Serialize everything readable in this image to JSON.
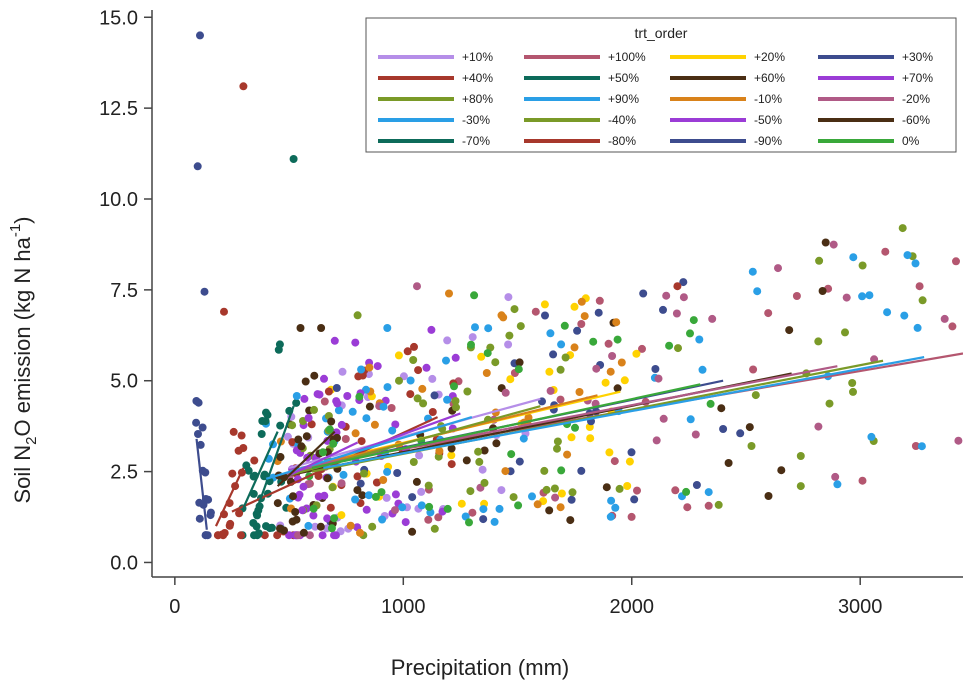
{
  "chart_data": {
    "type": "scatter",
    "title": "",
    "xlabel": "Precipitation (mm)",
    "ylabel_parts": [
      "Soil N",
      "2",
      "O emission (kg N ha",
      "-1",
      ")"
    ],
    "xlim": [
      -100,
      3450
    ],
    "ylim": [
      -0.4,
      15.2
    ],
    "xticks": [
      0,
      1000,
      2000,
      3000
    ],
    "xtick_labels": [
      "0",
      "1000",
      "2000",
      "3000"
    ],
    "yticks": [
      0.0,
      2.5,
      5.0,
      7.5,
      10.0,
      12.5,
      15.0
    ],
    "ytick_labels": [
      "0.0",
      "2.5",
      "5.0",
      "7.5",
      "10.0",
      "12.5",
      "15.0"
    ],
    "grid": false,
    "legend": {
      "title": "trt_order",
      "placement": "top-right",
      "columns": 4
    },
    "series": [
      {
        "name": "+10%",
        "color": "#b58ee8",
        "fit": [
          [
            500,
            2.6
          ],
          [
            1600,
            4.5
          ]
        ]
      },
      {
        "name": "+100%",
        "color": "#b4566f",
        "fit": [
          [
            700,
            2.8
          ],
          [
            3450,
            5.75
          ]
        ]
      },
      {
        "name": "+20%",
        "color": "#ffd200",
        "fit": [
          [
            600,
            2.7
          ],
          [
            1950,
            4.7
          ]
        ]
      },
      {
        "name": "+30%",
        "color": "#3d4c8e",
        "fit": [
          [
            650,
            2.7
          ],
          [
            2400,
            5.0
          ]
        ]
      },
      {
        "name": "+40%",
        "color": "#a7382c",
        "fit": [
          [
            250,
            1.4
          ],
          [
            1150,
            4.0
          ]
        ]
      },
      {
        "name": "+50%",
        "color": "#0d6b5a",
        "fit": [
          [
            350,
            1.3
          ],
          [
            520,
            4.3
          ]
        ]
      },
      {
        "name": "+60%",
        "color": "#4a2e14",
        "fit": [
          [
            500,
            2.4
          ],
          [
            2700,
            5.2
          ]
        ]
      },
      {
        "name": "+70%",
        "color": "#9b3cd6",
        "fit": [
          [
            550,
            2.5
          ],
          [
            1250,
            4.1
          ]
        ]
      },
      {
        "name": "+80%",
        "color": "#7a9a28",
        "fit": [
          [
            600,
            2.5
          ],
          [
            3100,
            5.55
          ]
        ]
      },
      {
        "name": "+90%",
        "color": "#2a9fe6",
        "fit": [
          [
            650,
            2.6
          ],
          [
            3280,
            5.65
          ]
        ]
      },
      {
        "name": "-10%",
        "color": "#d9821a",
        "fit": [
          [
            500,
            2.5
          ],
          [
            1850,
            4.6
          ]
        ]
      },
      {
        "name": "-20%",
        "color": "#b05a86",
        "fit": [
          [
            550,
            2.6
          ],
          [
            2900,
            5.4
          ]
        ]
      },
      {
        "name": "-30%",
        "color": "#2a9fe6",
        "fit": [
          [
            400,
            2.3
          ],
          [
            1300,
            4.0
          ]
        ]
      },
      {
        "name": "-40%",
        "color": "#7a9a28",
        "fit": [
          [
            500,
            2.4
          ],
          [
            1600,
            4.3
          ]
        ]
      },
      {
        "name": "-50%",
        "color": "#9b3cd6",
        "fit": [
          [
            500,
            2.4
          ],
          [
            800,
            3.3
          ]
        ]
      },
      {
        "name": "-60%",
        "color": "#4a2e14",
        "fit": [
          [
            450,
            2.1
          ],
          [
            700,
            3.6
          ]
        ]
      },
      {
        "name": "-70%",
        "color": "#0d6b5a",
        "fit": [
          [
            300,
            1.5
          ],
          [
            450,
            3.6
          ]
        ]
      },
      {
        "name": "-80%",
        "color": "#a7382c",
        "fit": [
          [
            180,
            1.0
          ],
          [
            300,
            2.6
          ]
        ]
      },
      {
        "name": "-90%",
        "color": "#3d4c8e",
        "fit": [
          [
            140,
            0.9
          ],
          [
            95,
            3.4
          ]
        ]
      },
      {
        "name": "0%",
        "color": "#39a83a",
        "fit": [
          [
            600,
            2.6
          ],
          [
            2300,
            4.9
          ]
        ]
      }
    ],
    "outlier_points": [
      {
        "x": 110,
        "y": 14.5,
        "series": "-90%"
      },
      {
        "x": 100,
        "y": 10.9,
        "series": "-90%"
      },
      {
        "x": 130,
        "y": 7.45,
        "series": "-90%"
      },
      {
        "x": 300,
        "y": 13.1,
        "series": "-80%"
      },
      {
        "x": 215,
        "y": 6.9,
        "series": "-80%"
      },
      {
        "x": 520,
        "y": 11.1,
        "series": "-70%"
      },
      {
        "x": 460,
        "y": 6.0,
        "series": "-70%"
      },
      {
        "x": 455,
        "y": 5.85,
        "series": "-70%"
      },
      {
        "x": 550,
        "y": 6.45,
        "series": "-60%"
      },
      {
        "x": 640,
        "y": 6.45,
        "series": "-60%"
      },
      {
        "x": 700,
        "y": 6.1,
        "series": "-50%"
      },
      {
        "x": 790,
        "y": 6.05,
        "series": "-50%"
      },
      {
        "x": 800,
        "y": 6.8,
        "series": "-40%"
      },
      {
        "x": 930,
        "y": 6.45,
        "series": "-30%"
      },
      {
        "x": 1060,
        "y": 7.6,
        "series": "-20%"
      },
      {
        "x": 1200,
        "y": 7.4,
        "series": "-10%"
      },
      {
        "x": 1310,
        "y": 7.35,
        "series": "0%"
      },
      {
        "x": 1460,
        "y": 7.3,
        "series": "+10%"
      },
      {
        "x": 1430,
        "y": 6.8,
        "series": "-10%"
      },
      {
        "x": 1620,
        "y": 7.1,
        "series": "+20%"
      },
      {
        "x": 1580,
        "y": 6.9,
        "series": "+100%"
      },
      {
        "x": 1860,
        "y": 7.2,
        "series": "+100%"
      },
      {
        "x": 2050,
        "y": 7.4,
        "series": "+30%"
      },
      {
        "x": 2200,
        "y": 7.6,
        "series": "+40%"
      },
      {
        "x": 2530,
        "y": 8.0,
        "series": "+90%"
      },
      {
        "x": 2640,
        "y": 8.1,
        "series": "-20%"
      },
      {
        "x": 2820,
        "y": 8.3,
        "series": "+80%"
      },
      {
        "x": 2970,
        "y": 8.4,
        "series": "+90%"
      },
      {
        "x": 3110,
        "y": 8.55,
        "series": "+100%"
      },
      {
        "x": 3260,
        "y": 7.6,
        "series": "+100%"
      },
      {
        "x": 3370,
        "y": 6.7,
        "series": "-20%"
      },
      {
        "x": 3430,
        "y": 3.35,
        "series": "-20%"
      },
      {
        "x": 3270,
        "y": 3.2,
        "series": "+90%"
      },
      {
        "x": 3010,
        "y": 2.25,
        "series": "+100%"
      },
      {
        "x": 2900,
        "y": 2.15,
        "series": "+90%"
      },
      {
        "x": 2740,
        "y": 2.1,
        "series": "+80%"
      }
    ],
    "cloud_seed": 20240517
  }
}
